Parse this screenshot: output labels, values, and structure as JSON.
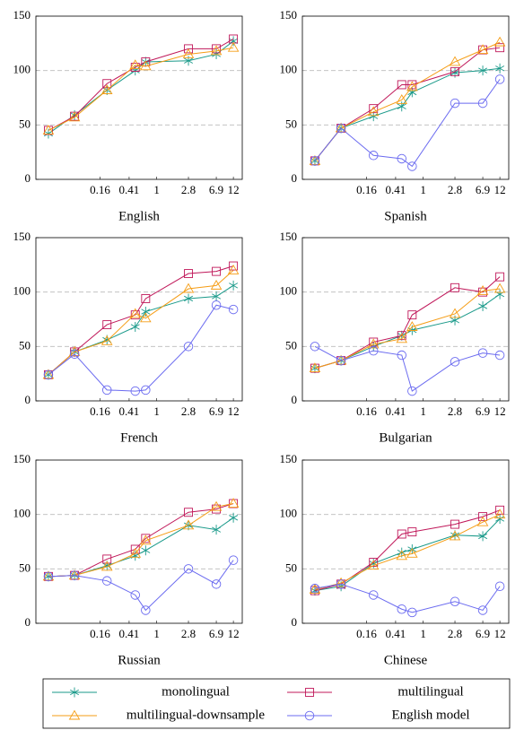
{
  "chart_data": [
    {
      "type": "line",
      "xlabel": "English",
      "x": [
        0.03,
        0.07,
        0.2,
        0.5,
        0.7,
        2.8,
        6.9,
        12
      ],
      "xlim": [
        0.02,
        16
      ],
      "xticks": [
        0.16,
        0.41,
        1,
        2.8,
        6.9,
        12
      ],
      "xscale": "log",
      "ylim": [
        0,
        150
      ],
      "yticks": [
        0,
        50,
        100,
        150
      ],
      "grid": true,
      "series": [
        {
          "name": "monolingual",
          "color": "#1a9a8a",
          "marker": "asterisk",
          "values": [
            42,
            59,
            82,
            100,
            108,
            109,
            115,
            127
          ]
        },
        {
          "name": "multilingual",
          "color": "#c0185a",
          "marker": "square",
          "values": [
            45,
            58,
            88,
            103,
            108,
            120,
            120,
            129
          ]
        },
        {
          "name": "multilingual-downsample",
          "color": "#f59d16",
          "marker": "triangle",
          "values": [
            45,
            57,
            82,
            105,
            104,
            115,
            118,
            121
          ]
        }
      ]
    },
    {
      "type": "line",
      "xlabel": "Spanish",
      "x": [
        0.03,
        0.07,
        0.2,
        0.5,
        0.7,
        2.8,
        6.9,
        12
      ],
      "xlim": [
        0.02,
        16
      ],
      "xticks": [
        0.16,
        0.41,
        1,
        2.8,
        6.9,
        12
      ],
      "xscale": "log",
      "ylim": [
        0,
        150
      ],
      "yticks": [
        0,
        50,
        100,
        150
      ],
      "grid": true,
      "series": [
        {
          "name": "monolingual",
          "color": "#1a9a8a",
          "marker": "asterisk",
          "values": [
            17,
            47,
            58,
            67,
            80,
            98,
            100,
            102
          ]
        },
        {
          "name": "multilingual",
          "color": "#c0185a",
          "marker": "square",
          "values": [
            17,
            47,
            65,
            87,
            87,
            99,
            119,
            121
          ]
        },
        {
          "name": "multilingual-downsample",
          "color": "#f59d16",
          "marker": "triangle",
          "values": [
            17,
            47,
            62,
            73,
            85,
            108,
            119,
            126
          ]
        },
        {
          "name": "English model",
          "color": "#6b6bf0",
          "marker": "circle",
          "values": [
            17,
            47,
            22,
            19,
            12,
            70,
            70,
            92
          ]
        }
      ]
    },
    {
      "type": "line",
      "xlabel": "French",
      "x": [
        0.03,
        0.07,
        0.2,
        0.5,
        0.7,
        2.8,
        6.9,
        12
      ],
      "xlim": [
        0.02,
        16
      ],
      "xticks": [
        0.16,
        0.41,
        1,
        2.8,
        6.9,
        12
      ],
      "xscale": "log",
      "ylim": [
        0,
        150
      ],
      "yticks": [
        0,
        50,
        100,
        150
      ],
      "grid": true,
      "series": [
        {
          "name": "monolingual",
          "color": "#1a9a8a",
          "marker": "asterisk",
          "values": [
            24,
            45,
            56,
            68,
            82,
            94,
            96,
            106
          ]
        },
        {
          "name": "multilingual",
          "color": "#c0185a",
          "marker": "square",
          "values": [
            24,
            45,
            70,
            79,
            94,
            117,
            119,
            124
          ]
        },
        {
          "name": "multilingual-downsample",
          "color": "#f59d16",
          "marker": "triangle",
          "values": [
            24,
            45,
            55,
            80,
            76,
            103,
            106,
            120
          ]
        },
        {
          "name": "English model",
          "color": "#6b6bf0",
          "marker": "circle",
          "values": [
            24,
            43,
            10,
            9,
            10,
            50,
            88,
            84
          ]
        }
      ]
    },
    {
      "type": "line",
      "xlabel": "Bulgarian",
      "x": [
        0.03,
        0.07,
        0.2,
        0.5,
        0.7,
        2.8,
        6.9,
        12
      ],
      "xlim": [
        0.02,
        16
      ],
      "xticks": [
        0.16,
        0.41,
        1,
        2.8,
        6.9,
        12
      ],
      "xscale": "log",
      "ylim": [
        0,
        150
      ],
      "yticks": [
        0,
        50,
        100,
        150
      ],
      "grid": true,
      "series": [
        {
          "name": "monolingual",
          "color": "#1a9a8a",
          "marker": "asterisk",
          "values": [
            30,
            37,
            50,
            60,
            65,
            74,
            87,
            98
          ]
        },
        {
          "name": "multilingual",
          "color": "#c0185a",
          "marker": "square",
          "values": [
            30,
            37,
            54,
            60,
            79,
            104,
            100,
            114
          ]
        },
        {
          "name": "multilingual-downsample",
          "color": "#f59d16",
          "marker": "triangle",
          "values": [
            30,
            37,
            52,
            57,
            68,
            80,
            101,
            103
          ]
        },
        {
          "name": "English model",
          "color": "#6b6bf0",
          "marker": "circle",
          "values": [
            50,
            37,
            46,
            42,
            9,
            36,
            44,
            42
          ]
        }
      ]
    },
    {
      "type": "line",
      "xlabel": "Russian",
      "x": [
        0.03,
        0.07,
        0.2,
        0.5,
        0.7,
        2.8,
        6.9,
        12
      ],
      "xlim": [
        0.02,
        16
      ],
      "xticks": [
        0.16,
        0.41,
        1,
        2.8,
        6.9,
        12
      ],
      "xscale": "log",
      "ylim": [
        0,
        150
      ],
      "yticks": [
        0,
        50,
        100,
        150
      ],
      "grid": true,
      "series": [
        {
          "name": "monolingual",
          "color": "#1a9a8a",
          "marker": "asterisk",
          "values": [
            43,
            44,
            53,
            62,
            67,
            90,
            86,
            97
          ]
        },
        {
          "name": "multilingual",
          "color": "#c0185a",
          "marker": "square",
          "values": [
            43,
            44,
            59,
            68,
            78,
            102,
            105,
            110
          ]
        },
        {
          "name": "multilingual-downsample",
          "color": "#f59d16",
          "marker": "triangle",
          "values": [
            43,
            44,
            52,
            64,
            76,
            90,
            107,
            110
          ]
        },
        {
          "name": "English model",
          "color": "#6b6bf0",
          "marker": "circle",
          "values": [
            43,
            44,
            39,
            26,
            12,
            50,
            36,
            58
          ]
        }
      ]
    },
    {
      "type": "line",
      "xlabel": "Chinese",
      "x": [
        0.03,
        0.07,
        0.2,
        0.5,
        0.7,
        2.8,
        6.9,
        12
      ],
      "xlim": [
        0.02,
        16
      ],
      "xticks": [
        0.16,
        0.41,
        1,
        2.8,
        6.9,
        12
      ],
      "xscale": "log",
      "ylim": [
        0,
        150
      ],
      "yticks": [
        0,
        50,
        100,
        150
      ],
      "grid": true,
      "series": [
        {
          "name": "monolingual",
          "color": "#1a9a8a",
          "marker": "asterisk",
          "values": [
            30,
            34,
            55,
            65,
            68,
            81,
            80,
            96
          ]
        },
        {
          "name": "multilingual",
          "color": "#c0185a",
          "marker": "square",
          "values": [
            30,
            36,
            56,
            82,
            84,
            91,
            98,
            104
          ]
        },
        {
          "name": "multilingual-downsample",
          "color": "#f59d16",
          "marker": "triangle",
          "values": [
            31,
            37,
            53,
            62,
            64,
            80,
            93,
            100
          ]
        },
        {
          "name": "English model",
          "color": "#6b6bf0",
          "marker": "circle",
          "values": [
            32,
            36,
            26,
            13,
            10,
            20,
            12,
            34
          ]
        }
      ]
    }
  ]
}
